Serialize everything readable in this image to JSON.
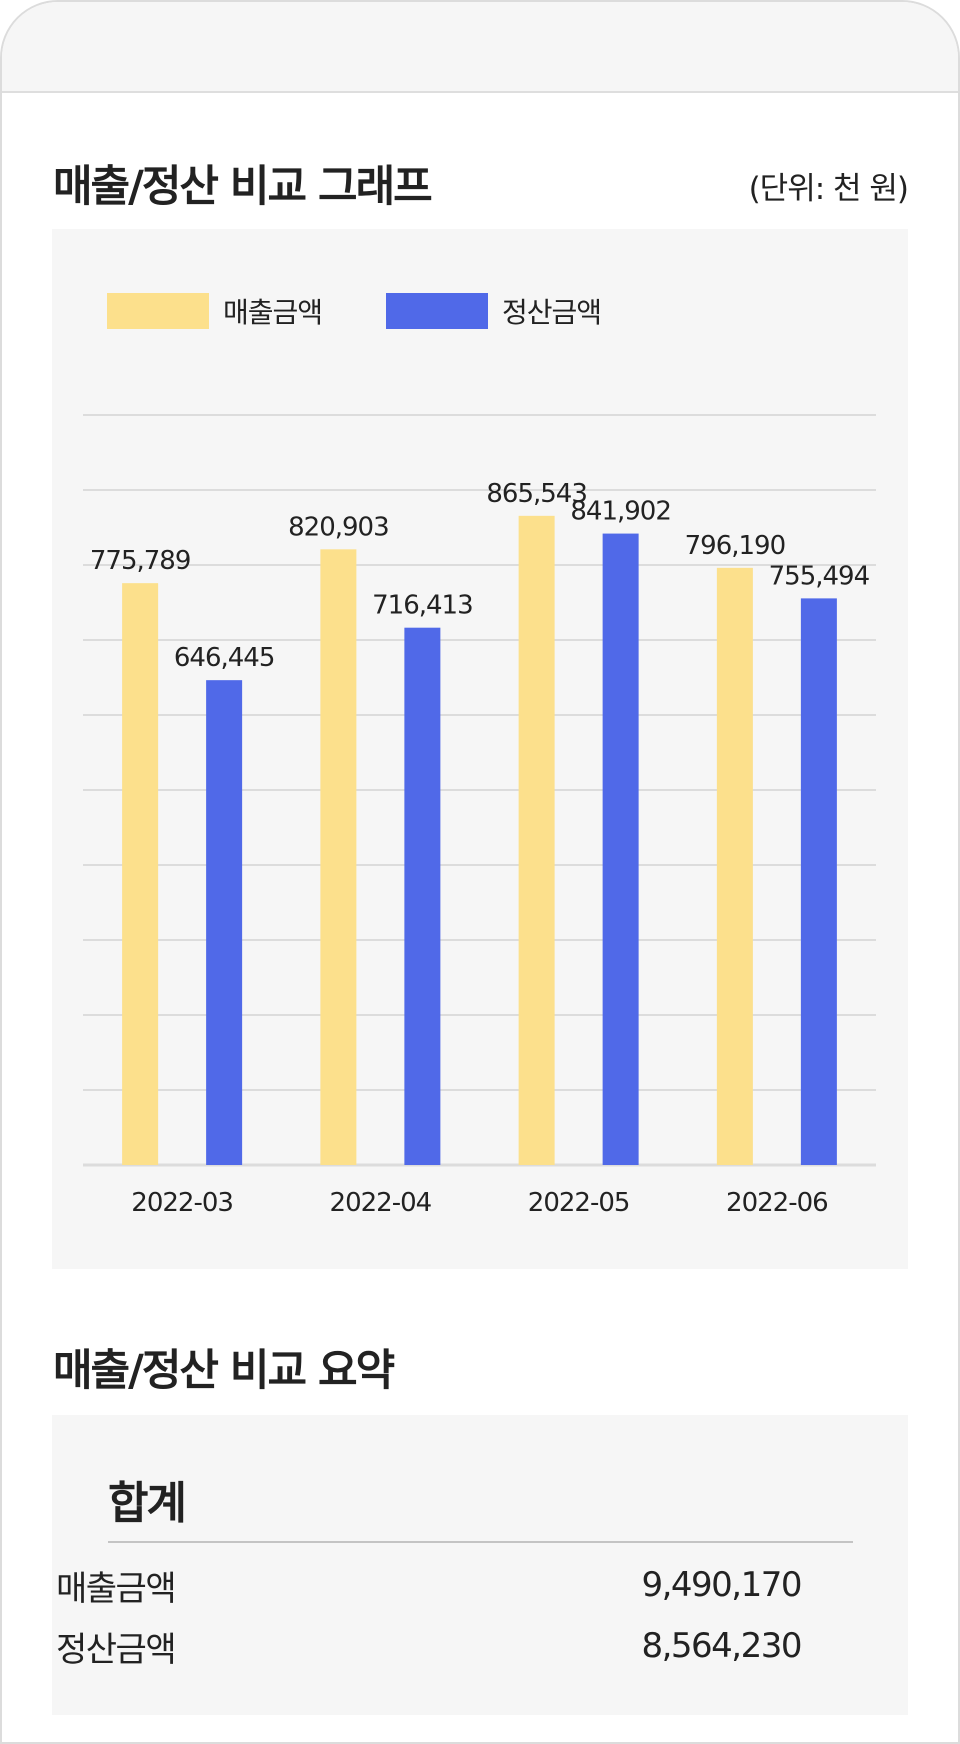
{
  "section1": {
    "title": "매출/정산 비교 그래프",
    "unit": "(단위: 천 원)"
  },
  "section2": {
    "title": "매출/정산 비교 요약"
  },
  "legend": {
    "sales": "매출금액",
    "settlement": "정산금액"
  },
  "colors": {
    "sales": "#fce08c",
    "settlement": "#5069e8",
    "grid": "#dcdcdc"
  },
  "chart_data": {
    "type": "bar",
    "categories": [
      "2022-03",
      "2022-04",
      "2022-05",
      "2022-06"
    ],
    "series": [
      {
        "name": "매출금액",
        "values": [
          775789,
          820903,
          865543,
          796190
        ],
        "labels": [
          "775,789",
          "820,903",
          "865,543",
          "796,190"
        ]
      },
      {
        "name": "정산금액",
        "values": [
          646445,
          716413,
          841902,
          755494
        ],
        "labels": [
          "646,445",
          "716,413",
          "841,902",
          "755,494"
        ]
      }
    ],
    "ylim": [
      0,
      1000000
    ],
    "grid": true,
    "legend": "top-left"
  },
  "summary": {
    "heading": "합계",
    "rows": [
      {
        "label": "매출금액",
        "value": "9,490,170"
      },
      {
        "label": "정산금액",
        "value": "8,564,230"
      }
    ]
  }
}
